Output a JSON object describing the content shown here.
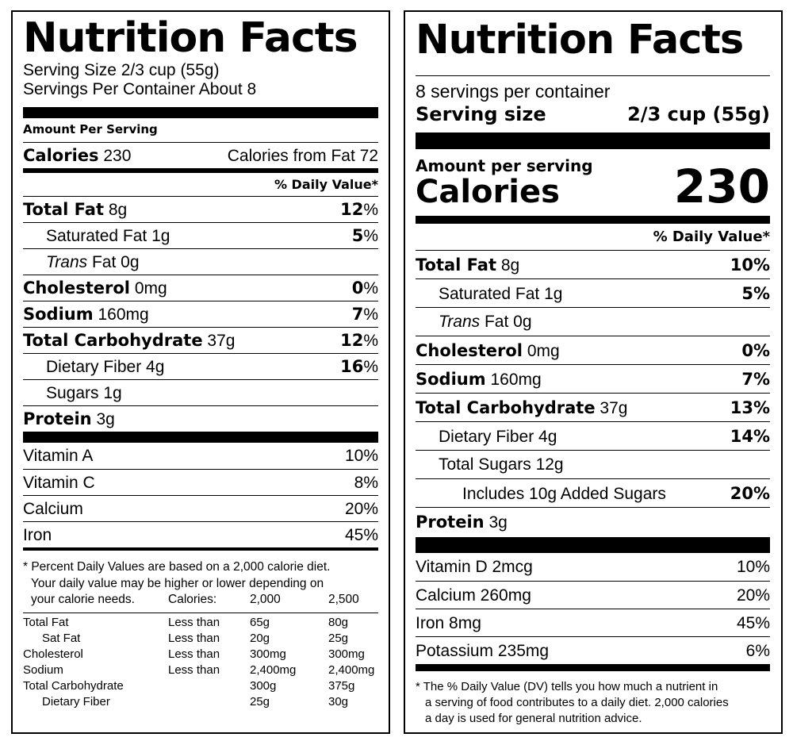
{
  "old_label": {
    "title": "Nutrition Facts",
    "serving_size": "Serving Size 2/3 cup (55g)",
    "servings_per_container": "Servings Per Container About 8",
    "amount_per_serving": "Amount Per Serving",
    "calories_label": "Calories",
    "calories_value": "230",
    "calories_from_fat": "Calories from Fat 72",
    "dv_header": "% Daily Value*",
    "nutrients": [
      {
        "name": "Total Fat",
        "amount": "8g",
        "dv_num": "12",
        "dv_sym": "%"
      },
      {
        "name": "Saturated Fat 1g",
        "amount": "",
        "dv_num": "5",
        "dv_sym": "%"
      },
      {
        "name_italic": "Trans",
        "name": "Fat 0g",
        "amount": "",
        "dv_num": "",
        "dv_sym": ""
      },
      {
        "name": "Cholesterol",
        "amount": "0mg",
        "dv_num": "0",
        "dv_sym": "%"
      },
      {
        "name": "Sodium",
        "amount": "160mg",
        "dv_num": "7",
        "dv_sym": "%"
      },
      {
        "name": "Total Carbohydrate",
        "amount": "37g",
        "dv_num": "12",
        "dv_sym": "%"
      },
      {
        "name": "Dietary Fiber 4g",
        "amount": "",
        "dv_num": "16",
        "dv_sym": "%"
      },
      {
        "name": "Sugars 1g",
        "amount": "",
        "dv_num": "",
        "dv_sym": ""
      },
      {
        "name": "Protein",
        "amount": "3g",
        "dv_num": "",
        "dv_sym": ""
      }
    ],
    "vitamins": [
      {
        "name": "Vitamin A",
        "value": "10%"
      },
      {
        "name": "Vitamin C",
        "value": "8%"
      },
      {
        "name": "Calcium",
        "value": "20%"
      },
      {
        "name": "Iron",
        "value": "45%"
      }
    ],
    "footnote_1": "* Percent Daily Values are based on a 2,000 calorie diet.",
    "footnote_2": "Your daily value may be higher or lower depending on",
    "footnote_3": "your calorie needs.",
    "table_header": {
      "c2": "Calories:",
      "c3": "2,000",
      "c4": "2,500"
    },
    "table_rows": [
      {
        "c1": "Total Fat",
        "c2": "Less than",
        "c3": "65g",
        "c4": "80g"
      },
      {
        "c1": "Sat Fat",
        "c2": "Less than",
        "c3": "20g",
        "c4": "25g"
      },
      {
        "c1": "Cholesterol",
        "c2": "Less than",
        "c3": "300mg",
        "c4": "300mg"
      },
      {
        "c1": "Sodium",
        "c2": "Less than",
        "c3": "2,400mg",
        "c4": "2,400mg"
      },
      {
        "c1": "Total Carbohydrate",
        "c2": "",
        "c3": "300g",
        "c4": "375g"
      },
      {
        "c1": "Dietary Fiber",
        "c2": "",
        "c3": "25g",
        "c4": "30g"
      }
    ]
  },
  "new_label": {
    "title": "Nutrition Facts",
    "servings_per_container": "8 servings per container",
    "serving_size_label": "Serving size",
    "serving_size_value": "2/3 cup (55g)",
    "amount_per_serving": "Amount per serving",
    "calories_label": "Calories",
    "calories_value": "230",
    "dv_header": "% Daily Value*",
    "nutrients": [
      {
        "name": "Total Fat",
        "amount": "8g",
        "dv": "10%"
      },
      {
        "name": "Saturated Fat 1g",
        "amount": "",
        "dv": "5%"
      },
      {
        "name_italic": "Trans",
        "name": "Fat 0g",
        "amount": "",
        "dv": ""
      },
      {
        "name": "Cholesterol",
        "amount": "0mg",
        "dv": "0%"
      },
      {
        "name": "Sodium",
        "amount": "160mg",
        "dv": "7%"
      },
      {
        "name": "Total Carbohydrate",
        "amount": "37g",
        "dv": "13%"
      },
      {
        "name": "Dietary Fiber 4g",
        "amount": "",
        "dv": "14%"
      },
      {
        "name": "Total Sugars 12g",
        "amount": "",
        "dv": ""
      },
      {
        "name": "Includes 10g Added Sugars",
        "amount": "",
        "dv": "20%"
      },
      {
        "name": "Protein",
        "amount": "3g",
        "dv": ""
      }
    ],
    "vitamins": [
      {
        "name": "Vitamin D 2mcg",
        "value": "10%"
      },
      {
        "name": "Calcium 260mg",
        "value": "20%"
      },
      {
        "name": "Iron 8mg",
        "value": "45%"
      },
      {
        "name": "Potassium 235mg",
        "value": "6%"
      }
    ],
    "footnote_1": "* The % Daily Value (DV) tells you how much a nutrient in",
    "footnote_2": "a serving of food contributes to a daily diet. 2,000 calories",
    "footnote_3": "a day is used for general nutrition advice."
  }
}
